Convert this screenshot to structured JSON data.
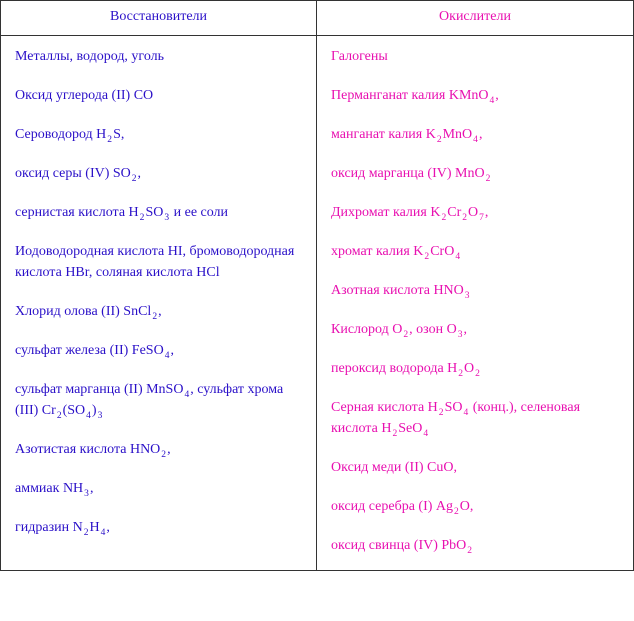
{
  "headers": {
    "left": "Восстановители",
    "right": "Окислители"
  },
  "colors": {
    "left": "#2a10c8",
    "right": "#e810b0"
  },
  "left_items": [
    {
      "html": "Металлы, водород, уголь"
    },
    {
      "html": "Оксид углерода (II) CO"
    },
    {
      "html": "Сероводород H<sub>2</sub>S,"
    },
    {
      "html": "оксид серы (IV) SO<sub>2</sub>,"
    },
    {
      "html": "сернистая кислота H<sub>2</sub>SO<sub>3</sub> и ее соли"
    },
    {
      "html": "Иодоводородная кислота HI, бромоводородная кислота HBr, соляная кислота HCl"
    },
    {
      "html": "Хлорид олова (II) SnCl<sub>2</sub>,"
    },
    {
      "html": "сульфат железа (II) FeSO<sub>4</sub>,"
    },
    {
      "html": "сульфат марганца (II) MnSO<sub>4</sub>, сульфат хрома (III) Cr<sub>2</sub>(SO<sub>4</sub>)<sub>3</sub>"
    },
    {
      "html": "Азотистая кислота HNO<sub>2</sub>,"
    },
    {
      "html": "аммиак NH<sub>3</sub>,"
    },
    {
      "html": "гидразин N<sub>2</sub>H<sub>4</sub>,"
    }
  ],
  "right_items": [
    {
      "html": "Галогены"
    },
    {
      "html": "Перманганат калия KMnO<sub>4</sub>,"
    },
    {
      "html": "манганат калия K<sub>2</sub>MnO<sub>4</sub>,"
    },
    {
      "html": "оксид марганца (IV) MnO<sub>2</sub>"
    },
    {
      "html": "Дихромат калия K<sub>2</sub>Cr<sub>2</sub>O<sub>7</sub>,"
    },
    {
      "html": "хромат калия K<sub>2</sub>CrO<sub>4</sub>"
    },
    {
      "html": "Азотная кислота HNO<sub>3</sub>"
    },
    {
      "html": "Кислород O<sub>2</sub>, озон O<sub>3</sub>,"
    },
    {
      "html": "пероксид водорода H<sub>2</sub>O<sub>2</sub>"
    },
    {
      "html": "Серная кислота H<sub>2</sub>SO<sub>4</sub> (конц.), селеновая кислота H<sub>2</sub>SeO<sub>4</sub>"
    },
    {
      "html": "Оксид меди (II) CuO,"
    },
    {
      "html": "оксид серебра (I) Ag<sub>2</sub>O,"
    },
    {
      "html": "оксид свинца (IV) PbO<sub>2</sub>"
    }
  ]
}
